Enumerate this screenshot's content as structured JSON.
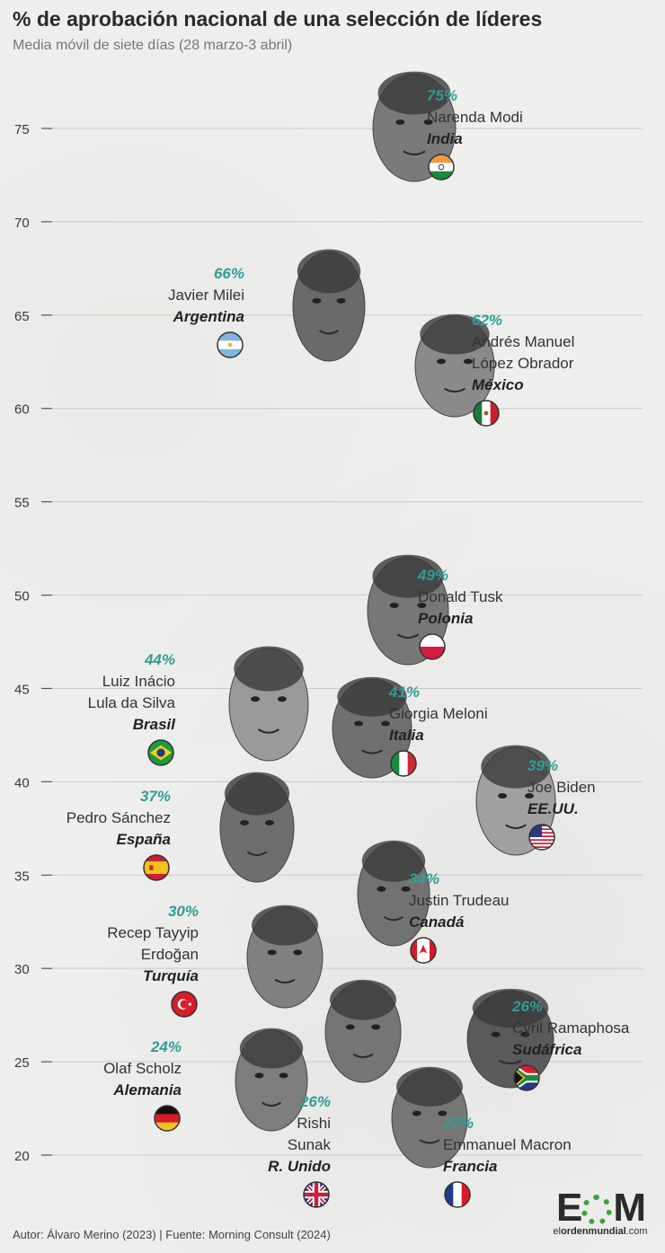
{
  "header": {
    "title": "% de aprobación nacional de una selección de líderes",
    "subtitle": "Media móvil de siete días (28 marzo-3 abril)"
  },
  "footer": {
    "credit": "Autor: Álvaro Merino (2023) | Fuente: Morning Consult (2024)"
  },
  "logo": {
    "mark_left": "E",
    "mark_right": "M",
    "site_prefix": "el",
    "site_bold": "ordenmundial",
    "site_suffix": ".com"
  },
  "chart_data": {
    "type": "scatter",
    "title": "% de aprobación nacional de una selección de líderes",
    "subtitle": "Media móvil de siete días (28 marzo-3 abril)",
    "ylim": [
      20,
      77
    ],
    "yticks": [
      20,
      25,
      30,
      35,
      40,
      45,
      50,
      55,
      60,
      65,
      70,
      75
    ],
    "grid": true,
    "points": [
      {
        "label": "75%",
        "value": 75,
        "name_lines": [
          "Narenda Modi"
        ],
        "country": "India",
        "flag": "india-flag",
        "label_side": "right"
      },
      {
        "label": "66%",
        "value": 66,
        "name_lines": [
          "Javier Milei"
        ],
        "country": "Argentina",
        "flag": "argentina-flag",
        "label_side": "left"
      },
      {
        "label": "62%",
        "value": 62,
        "name_lines": [
          "Andrés Manuel",
          "López Obrador"
        ],
        "country": "México",
        "flag": "mexico-flag",
        "label_side": "right"
      },
      {
        "label": "49%",
        "value": 49,
        "name_lines": [
          "Donald Tusk"
        ],
        "country": "Polonia",
        "flag": "poland-flag",
        "label_side": "right"
      },
      {
        "label": "44%",
        "value": 44,
        "name_lines": [
          "Luiz Inácio",
          "Lula da Silva"
        ],
        "country": "Brasil",
        "flag": "brazil-flag",
        "label_side": "left"
      },
      {
        "label": "41%",
        "value": 41,
        "name_lines": [
          "Giorgia Meloni"
        ],
        "country": "Italia",
        "flag": "italy-flag",
        "label_side": "right"
      },
      {
        "label": "39%",
        "value": 39,
        "name_lines": [
          "Joe Biden"
        ],
        "country": "EE.UU.",
        "flag": "usa-flag",
        "label_side": "right"
      },
      {
        "label": "37%",
        "value": 37,
        "name_lines": [
          "Pedro Sánchez"
        ],
        "country": "España",
        "flag": "spain-flag",
        "label_side": "left"
      },
      {
        "label": "34%",
        "value": 34,
        "name_lines": [
          "Justin Trudeau"
        ],
        "country": "Canadá",
        "flag": "canada-flag",
        "label_side": "right"
      },
      {
        "label": "30%",
        "value": 30,
        "name_lines": [
          "Recep Tayyip",
          "Erdoğan"
        ],
        "country": "Turquía",
        "flag": "turkey-flag",
        "label_side": "left"
      },
      {
        "label": "26%",
        "value": 26,
        "name_lines": [
          "Cyril Ramaphosa"
        ],
        "country": "Sudáfrica",
        "flag": "south-africa-flag",
        "label_side": "right"
      },
      {
        "label": "24%",
        "value": 24,
        "name_lines": [
          "Olaf Scholz"
        ],
        "country": "Alemania",
        "flag": "germany-flag",
        "label_side": "left"
      },
      {
        "label": "26%",
        "value": 26,
        "name_lines": [
          "Rishi",
          "Sunak"
        ],
        "country": "R. Unido",
        "flag": "uk-flag",
        "label_side": "left"
      },
      {
        "label": "22%",
        "value": 22,
        "name_lines": [
          "Emmanuel Macron"
        ],
        "country": "Francia",
        "flag": "france-flag",
        "label_side": "right"
      }
    ]
  }
}
